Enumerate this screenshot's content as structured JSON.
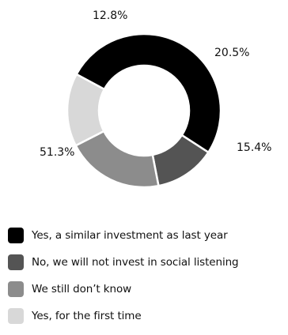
{
  "chart_data": {
    "type": "pie",
    "donut": true,
    "title": "",
    "start_angle_deg": -61.7,
    "legend": "bottom-left",
    "series": [
      {
        "name": "Yes, a similar investment as last year",
        "value": 51.3,
        "label": "51.3%",
        "color": "#000000"
      },
      {
        "name": "No, we will not invest in social listening",
        "value": 12.8,
        "label": "12.8%",
        "color": "#545454"
      },
      {
        "name": "We still don’t know",
        "value": 20.5,
        "label": "20.5%",
        "color": "#8c8c8c"
      },
      {
        "name": "Yes, for the first time",
        "value": 15.4,
        "label": "15.4%",
        "color": "#d8d8d8"
      }
    ]
  }
}
